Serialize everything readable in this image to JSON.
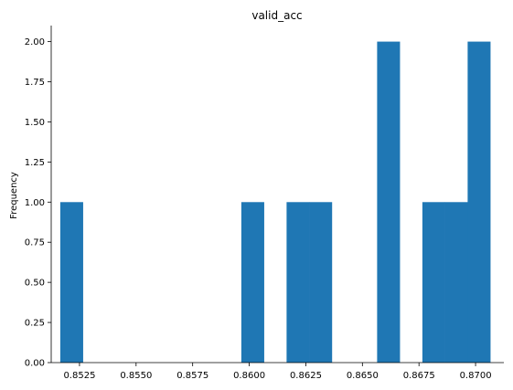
{
  "chart_data": {
    "type": "bar",
    "title": "valid_acc",
    "xlabel": "",
    "ylabel": "Frequency",
    "bar_color": "#1f77b4",
    "xlim": [
      0.85125,
      0.87125
    ],
    "ylim": [
      0,
      2.1
    ],
    "xticks": [
      "0.8525",
      "0.8550",
      "0.8575",
      "0.8600",
      "0.8625",
      "0.8650",
      "0.8675",
      "0.8700"
    ],
    "yticks": [
      "0.00",
      "0.25",
      "0.50",
      "0.75",
      "1.00",
      "1.25",
      "1.50",
      "1.75",
      "2.00"
    ],
    "grid": false,
    "bins": [
      {
        "start": 0.85165,
        "end": 0.85265,
        "count": 1
      },
      {
        "start": 0.85265,
        "end": 0.85365,
        "count": 0
      },
      {
        "start": 0.85365,
        "end": 0.85465,
        "count": 0
      },
      {
        "start": 0.85465,
        "end": 0.85565,
        "count": 0
      },
      {
        "start": 0.85565,
        "end": 0.85665,
        "count": 0
      },
      {
        "start": 0.85665,
        "end": 0.85765,
        "count": 0
      },
      {
        "start": 0.85765,
        "end": 0.85865,
        "count": 0
      },
      {
        "start": 0.85865,
        "end": 0.85965,
        "count": 0
      },
      {
        "start": 0.85965,
        "end": 0.86065,
        "count": 1
      },
      {
        "start": 0.86065,
        "end": 0.86165,
        "count": 0
      },
      {
        "start": 0.86165,
        "end": 0.86265,
        "count": 1
      },
      {
        "start": 0.86265,
        "end": 0.86365,
        "count": 1
      },
      {
        "start": 0.86365,
        "end": 0.86465,
        "count": 0
      },
      {
        "start": 0.86465,
        "end": 0.86565,
        "count": 0
      },
      {
        "start": 0.86565,
        "end": 0.86665,
        "count": 2
      },
      {
        "start": 0.86665,
        "end": 0.86765,
        "count": 0
      },
      {
        "start": 0.86765,
        "end": 0.86865,
        "count": 1
      },
      {
        "start": 0.86865,
        "end": 0.86965,
        "count": 1
      },
      {
        "start": 0.86965,
        "end": 0.87065,
        "count": 2
      }
    ]
  }
}
